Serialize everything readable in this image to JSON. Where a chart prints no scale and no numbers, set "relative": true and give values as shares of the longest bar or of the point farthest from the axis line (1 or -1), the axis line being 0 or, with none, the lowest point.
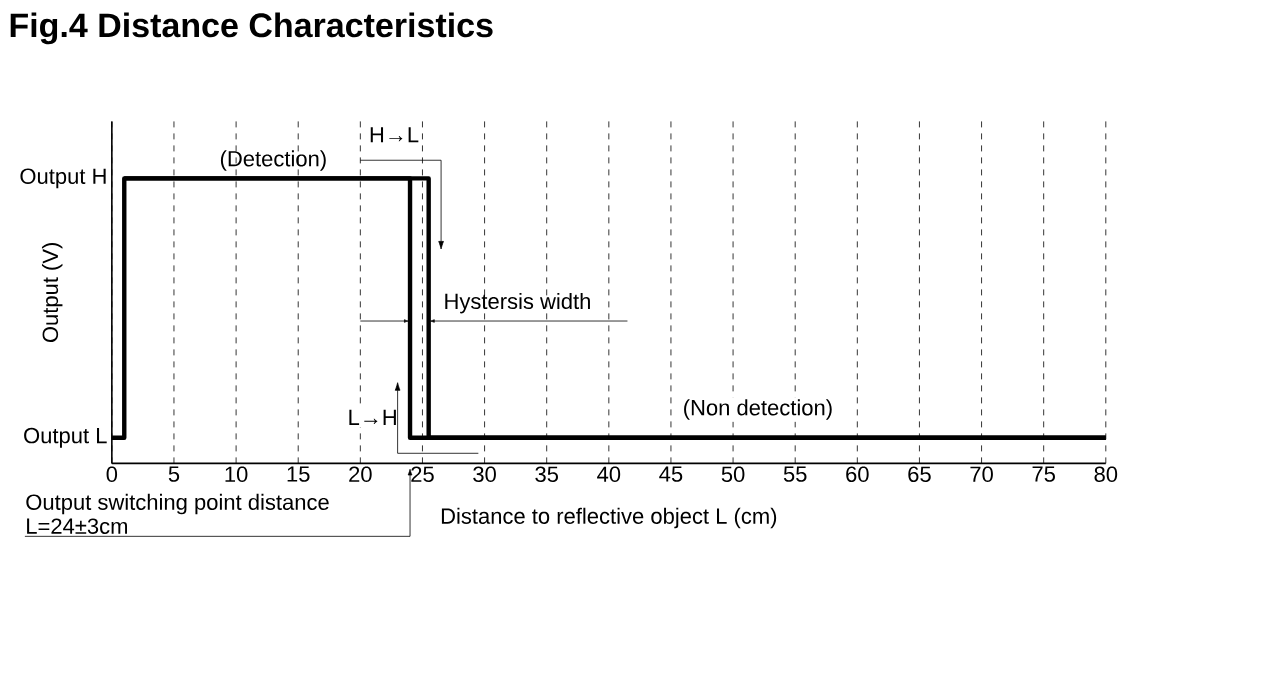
{
  "chart_data": {
    "type": "step",
    "title": "Fig.4 Distance Characteristics",
    "xlabel": "Distance to reflective object  L (cm)",
    "ylabel": "Output (V)",
    "xlim": [
      0,
      80
    ],
    "xticks": [
      0,
      5,
      10,
      15,
      20,
      25,
      30,
      35,
      40,
      45,
      50,
      55,
      60,
      65,
      70,
      75,
      80
    ],
    "relative": true,
    "grid": "x",
    "marker": "none",
    "line_style": "solid",
    "series": [
      {
        "color": "#000000",
        "x": [
          0,
          1,
          1,
          25.5,
          25.5,
          80
        ],
        "values": [
          0.09,
          0.09,
          1,
          1,
          0.09,
          0.09
        ]
      },
      {
        "color": "#000000",
        "x": [
          1,
          24,
          24,
          80
        ],
        "values": [
          1,
          1,
          0.09,
          0.09
        ]
      }
    ],
    "annotations": [
      "Output H",
      "Output L",
      "(Detection)",
      "H→L",
      "L→H",
      "Hystersis width",
      "(Non detection)",
      "Output switching point distance",
      "L=24±3cm"
    ]
  }
}
